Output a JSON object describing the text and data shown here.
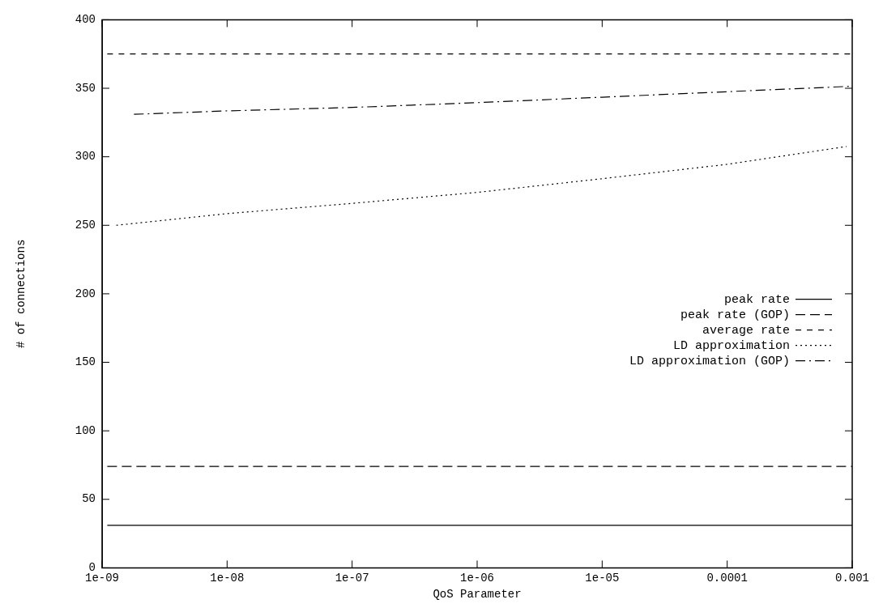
{
  "chart_data": {
    "type": "line",
    "xlabel": "QoS Parameter",
    "ylabel": "# of connections",
    "xlim": [
      1e-09,
      0.001
    ],
    "ylim": [
      0,
      400
    ],
    "xticks": [
      {
        "value": 1e-09,
        "label": "1e-09"
      },
      {
        "value": 1e-08,
        "label": "1e-08"
      },
      {
        "value": 1e-07,
        "label": "1e-07"
      },
      {
        "value": 1e-06,
        "label": "1e-06"
      },
      {
        "value": 1e-05,
        "label": "1e-05"
      },
      0.0001,
      0.001
    ],
    "yticks": [
      0,
      50,
      100,
      150,
      200,
      250,
      300,
      350,
      400
    ],
    "log": "x",
    "grid": false,
    "legend": "right",
    "marker": "none",
    "series": [
      {
        "name": "peak rate",
        "color": "#000000",
        "line_style": "solid",
        "x": [
          1.1e-09,
          0.001
        ],
        "values": [
          31,
          31
        ]
      },
      {
        "name": "peak rate (GOP)",
        "color": "#000000",
        "line_style": "longdash",
        "x": [
          1.1e-09,
          0.001
        ],
        "values": [
          74,
          74
        ]
      },
      {
        "name": "average rate",
        "color": "#000000",
        "line_style": "dashed",
        "x": [
          1.1e-09,
          0.001
        ],
        "values": [
          375,
          375
        ]
      },
      {
        "name": "LD approximation",
        "color": "#000000",
        "line_style": "dotted",
        "x": [
          1.3e-09,
          1e-08,
          1e-07,
          1e-06,
          1e-05,
          0.0001,
          0.0009
        ],
        "values": [
          250,
          258.5,
          266,
          274,
          284,
          294.5,
          307.5
        ]
      },
      {
        "name": "LD approximation (GOP)",
        "color": "#000000",
        "line_style": "dashdot",
        "x": [
          1.8e-09,
          1e-08,
          1e-07,
          1e-06,
          1e-05,
          0.0001,
          0.001
        ],
        "values": [
          331,
          333.5,
          336,
          339.5,
          343.5,
          347.5,
          351.5
        ]
      }
    ]
  }
}
